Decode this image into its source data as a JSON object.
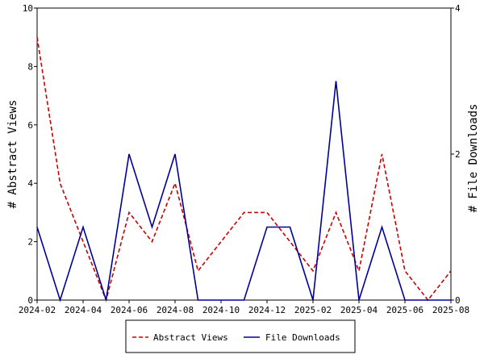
{
  "chart_data": {
    "type": "line",
    "x": [
      "2024-02",
      "2024-03",
      "2024-04",
      "2024-05",
      "2024-06",
      "2024-07",
      "2024-08",
      "2024-09",
      "2024-10",
      "2024-11",
      "2024-12",
      "2025-01",
      "2025-02",
      "2025-03",
      "2025-04",
      "2025-05",
      "2025-06",
      "2025-07",
      "2025-08"
    ],
    "x_tick_labels": [
      "2024-02",
      "2024-04",
      "2024-06",
      "2024-08",
      "2024-10",
      "2024-12",
      "2025-02",
      "2025-04",
      "2025-06",
      "2025-08"
    ],
    "y_left": {
      "label": "# Abstract Views",
      "range": [
        0,
        10
      ],
      "ticks": [
        "0",
        "2",
        "4",
        "6",
        "8",
        "10"
      ]
    },
    "y_right": {
      "label": "# File Downloads",
      "range": [
        0,
        4
      ],
      "ticks": [
        "0",
        "2",
        "4"
      ]
    },
    "series": [
      {
        "name": "Abstract Views",
        "axis": "left",
        "color": "#cc0000",
        "style": "dashed",
        "values": [
          9,
          4,
          2,
          0,
          3,
          2,
          4,
          1,
          2,
          3,
          3,
          2,
          1,
          3,
          1,
          5,
          1,
          0,
          1
        ]
      },
      {
        "name": "File Downloads",
        "axis": "right",
        "color": "#000099",
        "style": "solid",
        "values": [
          1,
          0,
          1,
          0,
          2,
          1,
          2,
          0,
          0,
          0,
          1,
          1,
          0,
          3,
          0,
          1,
          0,
          0,
          0
        ]
      }
    ],
    "legend_position": "bottom-center",
    "grid": false
  }
}
